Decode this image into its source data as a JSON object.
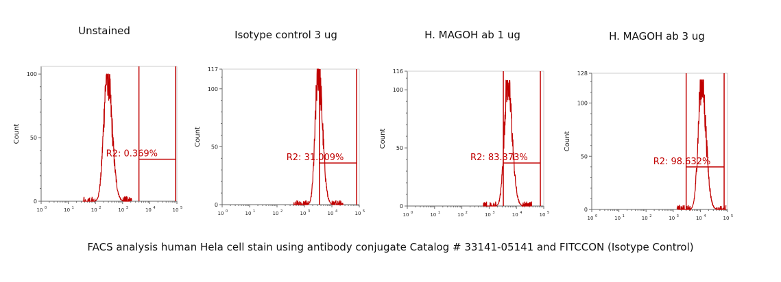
{
  "caption": "FACS analysis human Hela cell stain using antibody conjugate Catalog # 33141-05141 and FITCCON (Isotype Control)",
  "colors": {
    "trace": "#c00000",
    "gate": "#c00000",
    "axis": "#666666",
    "label": "#c00000"
  },
  "chart_data": [
    {
      "type": "area",
      "title": "Unstained",
      "ylabel": "Count",
      "x_scale": "log",
      "xlim": [
        1,
        100000
      ],
      "ylim": [
        0,
        106
      ],
      "y_ticks": [
        0,
        50,
        100
      ],
      "x_tick_labels": [
        "10",
        "10",
        "10",
        "10",
        "10",
        "10"
      ],
      "peak_x": 270,
      "peak_y": 100,
      "spread": 0.13,
      "gate": {
        "name": "R2",
        "x_start": 4000,
        "x_end": 90000,
        "percent": "R2: 0.369%",
        "marker_y": 33
      }
    },
    {
      "type": "area",
      "title": "Isotype control 3 ug",
      "ylabel": "Count",
      "x_scale": "log",
      "xlim": [
        1,
        100000
      ],
      "ylim": [
        0,
        117
      ],
      "y_ticks": [
        0,
        50,
        100
      ],
      "y_max_label": "117",
      "x_tick_labels": [
        "10",
        "10",
        "10",
        "10",
        "10",
        "10"
      ],
      "peak_x": 3200,
      "peak_y": 117,
      "spread": 0.11,
      "gate": {
        "name": "R2",
        "x_start": 3500,
        "x_end": 80000,
        "percent": "R2: 31.009%",
        "marker_y": 36
      }
    },
    {
      "type": "area",
      "title": "H. MAGOH ab 1 ug",
      "ylabel": "Count",
      "x_scale": "log",
      "xlim": [
        1,
        100000
      ],
      "ylim": [
        0,
        116
      ],
      "y_ticks": [
        0,
        50,
        100
      ],
      "y_max_label": "116",
      "x_tick_labels": [
        "10",
        "10",
        "10",
        "10",
        "10",
        "10"
      ],
      "peak_x": 4700,
      "peak_y": 108,
      "spread": 0.12,
      "gate": {
        "name": "R2",
        "x_start": 3300,
        "x_end": 75000,
        "percent": "R2: 83.373%",
        "marker_y": 37
      }
    },
    {
      "type": "area",
      "title": "H. MAGOH ab 3 ug",
      "ylabel": "Count",
      "x_scale": "log",
      "xlim": [
        1,
        100000
      ],
      "ylim": [
        0,
        128
      ],
      "y_ticks": [
        0,
        50,
        100
      ],
      "y_max_label": "128",
      "x_tick_labels": [
        "10",
        "10",
        "10",
        "10",
        "10",
        "10"
      ],
      "peak_x": 11000,
      "peak_y": 122,
      "spread": 0.12,
      "gate": {
        "name": "R2",
        "x_start": 3000,
        "x_end": 75000,
        "percent": "R2: 98.632%",
        "marker_y": 40
      }
    }
  ]
}
